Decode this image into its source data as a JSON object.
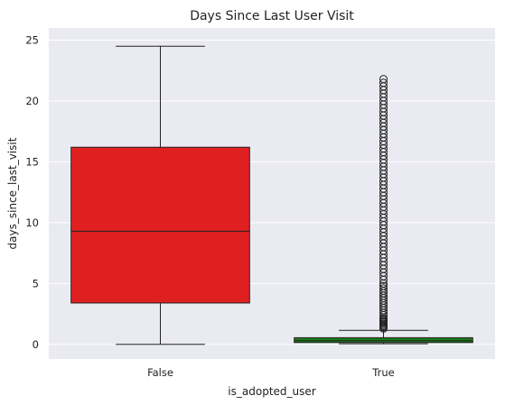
{
  "chart_data": {
    "type": "box",
    "title": "Days Since Last User Visit",
    "xlabel": "is_adopted_user",
    "ylabel": "days_since_last_visit",
    "ylim": [
      -1.2,
      26
    ],
    "yticks": [
      0,
      5,
      10,
      15,
      20,
      25
    ],
    "grid": true,
    "categories": [
      "False",
      "True"
    ],
    "boxes": [
      {
        "category": "False",
        "whisker_low": 0,
        "q1": 3.4,
        "median": 9.3,
        "q3": 16.2,
        "whisker_high": 24.5,
        "color": "#e02020",
        "outliers": []
      },
      {
        "category": "True",
        "whisker_low": 0.05,
        "q1": 0.15,
        "median": 0.3,
        "q3": 0.55,
        "whisker_high": 1.15,
        "color": "#1a7a1a",
        "outliers": [
          1.3,
          1.4,
          1.5,
          1.6,
          1.7,
          1.8,
          1.9,
          2.0,
          2.1,
          2.2,
          2.4,
          2.6,
          2.8,
          3.0,
          3.2,
          3.4,
          3.6,
          3.8,
          4.0,
          4.2,
          4.4,
          4.6,
          4.8,
          5.0,
          5.3,
          5.6,
          5.9,
          6.2,
          6.5,
          6.8,
          7.1,
          7.4,
          7.7,
          8.0,
          8.3,
          8.6,
          8.9,
          9.2,
          9.5,
          9.8,
          10.1,
          10.4,
          10.7,
          11.0,
          11.3,
          11.6,
          11.9,
          12.2,
          12.5,
          12.8,
          13.1,
          13.4,
          13.7,
          14.0,
          14.3,
          14.6,
          14.9,
          15.2,
          15.5,
          15.8,
          16.1,
          16.4,
          16.7,
          17.0,
          17.3,
          17.6,
          17.9,
          18.2,
          18.5,
          18.8,
          19.1,
          19.4,
          19.7,
          20.0,
          20.3,
          20.6,
          20.9,
          21.2,
          21.5,
          21.8
        ]
      }
    ],
    "colors": {
      "plot_background": "#eaeaf2",
      "grid": "#ffffff",
      "edge": "#222222"
    }
  }
}
